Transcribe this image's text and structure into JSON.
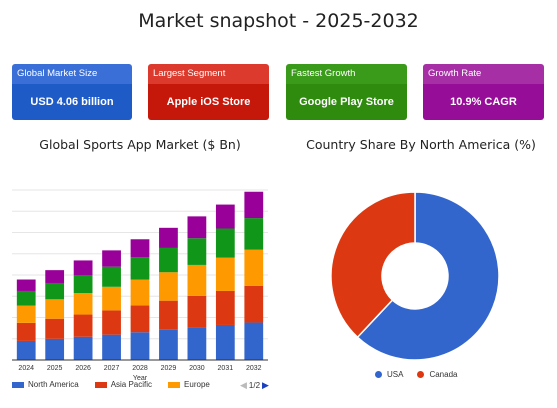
{
  "page_title": "Market snapshot - 2025-2032",
  "cards": [
    {
      "label": "Global Market Size",
      "value": "USD 4.06 billion",
      "label_bg": "#3a6fd8",
      "value_bg": "#1e5bc6"
    },
    {
      "label": "Largest Segment",
      "value": "Apple iOS Store",
      "label_bg": "#dc3a2c",
      "value_bg": "#c5170a"
    },
    {
      "label": "Fastest Growth",
      "value": "Google Play Store",
      "label_bg": "#3a9a1a",
      "value_bg": "#2e8b0d"
    },
    {
      "label": "Growth Rate",
      "value": "10.9% CAGR",
      "label_bg": "#a62fa6",
      "value_bg": "#960e98"
    }
  ],
  "bar_chart": {
    "title": "Global Sports App Market ($ Bn)",
    "legend_page": "1/2"
  },
  "donut_chart": {
    "title": "Country Share By North America (%)"
  },
  "chart_data": [
    {
      "type": "bar",
      "stacked": true,
      "title": "Global Sports App Market ($ Bn)",
      "xlabel": "Year",
      "ylabel": "",
      "categories": [
        "2024",
        "2025",
        "2026",
        "2027",
        "2028",
        "2029",
        "2030",
        "2031",
        "2032"
      ],
      "series": [
        {
          "name": "North America",
          "color": "#3366cc",
          "values": [
            0.55,
            0.61,
            0.67,
            0.73,
            0.8,
            0.87,
            0.94,
            1.01,
            1.08
          ]
        },
        {
          "name": "Asia Pacific",
          "color": "#dc3912",
          "values": [
            0.52,
            0.58,
            0.64,
            0.7,
            0.77,
            0.84,
            0.91,
            0.98,
            1.06
          ]
        },
        {
          "name": "Europe",
          "color": "#ff9900",
          "values": [
            0.5,
            0.56,
            0.62,
            0.68,
            0.75,
            0.82,
            0.89,
            0.96,
            1.04
          ]
        },
        {
          "name": "",
          "color": "#109618",
          "values": [
            0.42,
            0.47,
            0.52,
            0.58,
            0.64,
            0.7,
            0.77,
            0.84,
            0.91
          ]
        },
        {
          "name": "",
          "color": "#990099",
          "values": [
            0.33,
            0.37,
            0.42,
            0.47,
            0.52,
            0.58,
            0.63,
            0.69,
            0.76
          ]
        }
      ],
      "ylim": [
        0,
        4.9
      ],
      "grid": true,
      "legend_position": "bottom"
    },
    {
      "type": "pie",
      "donut": true,
      "title": "Country Share By North America (%)",
      "categories": [
        "USA",
        "Canada"
      ],
      "values": [
        62,
        38
      ],
      "colors": [
        "#3366cc",
        "#dc3912"
      ],
      "legend_position": "bottom"
    }
  ]
}
